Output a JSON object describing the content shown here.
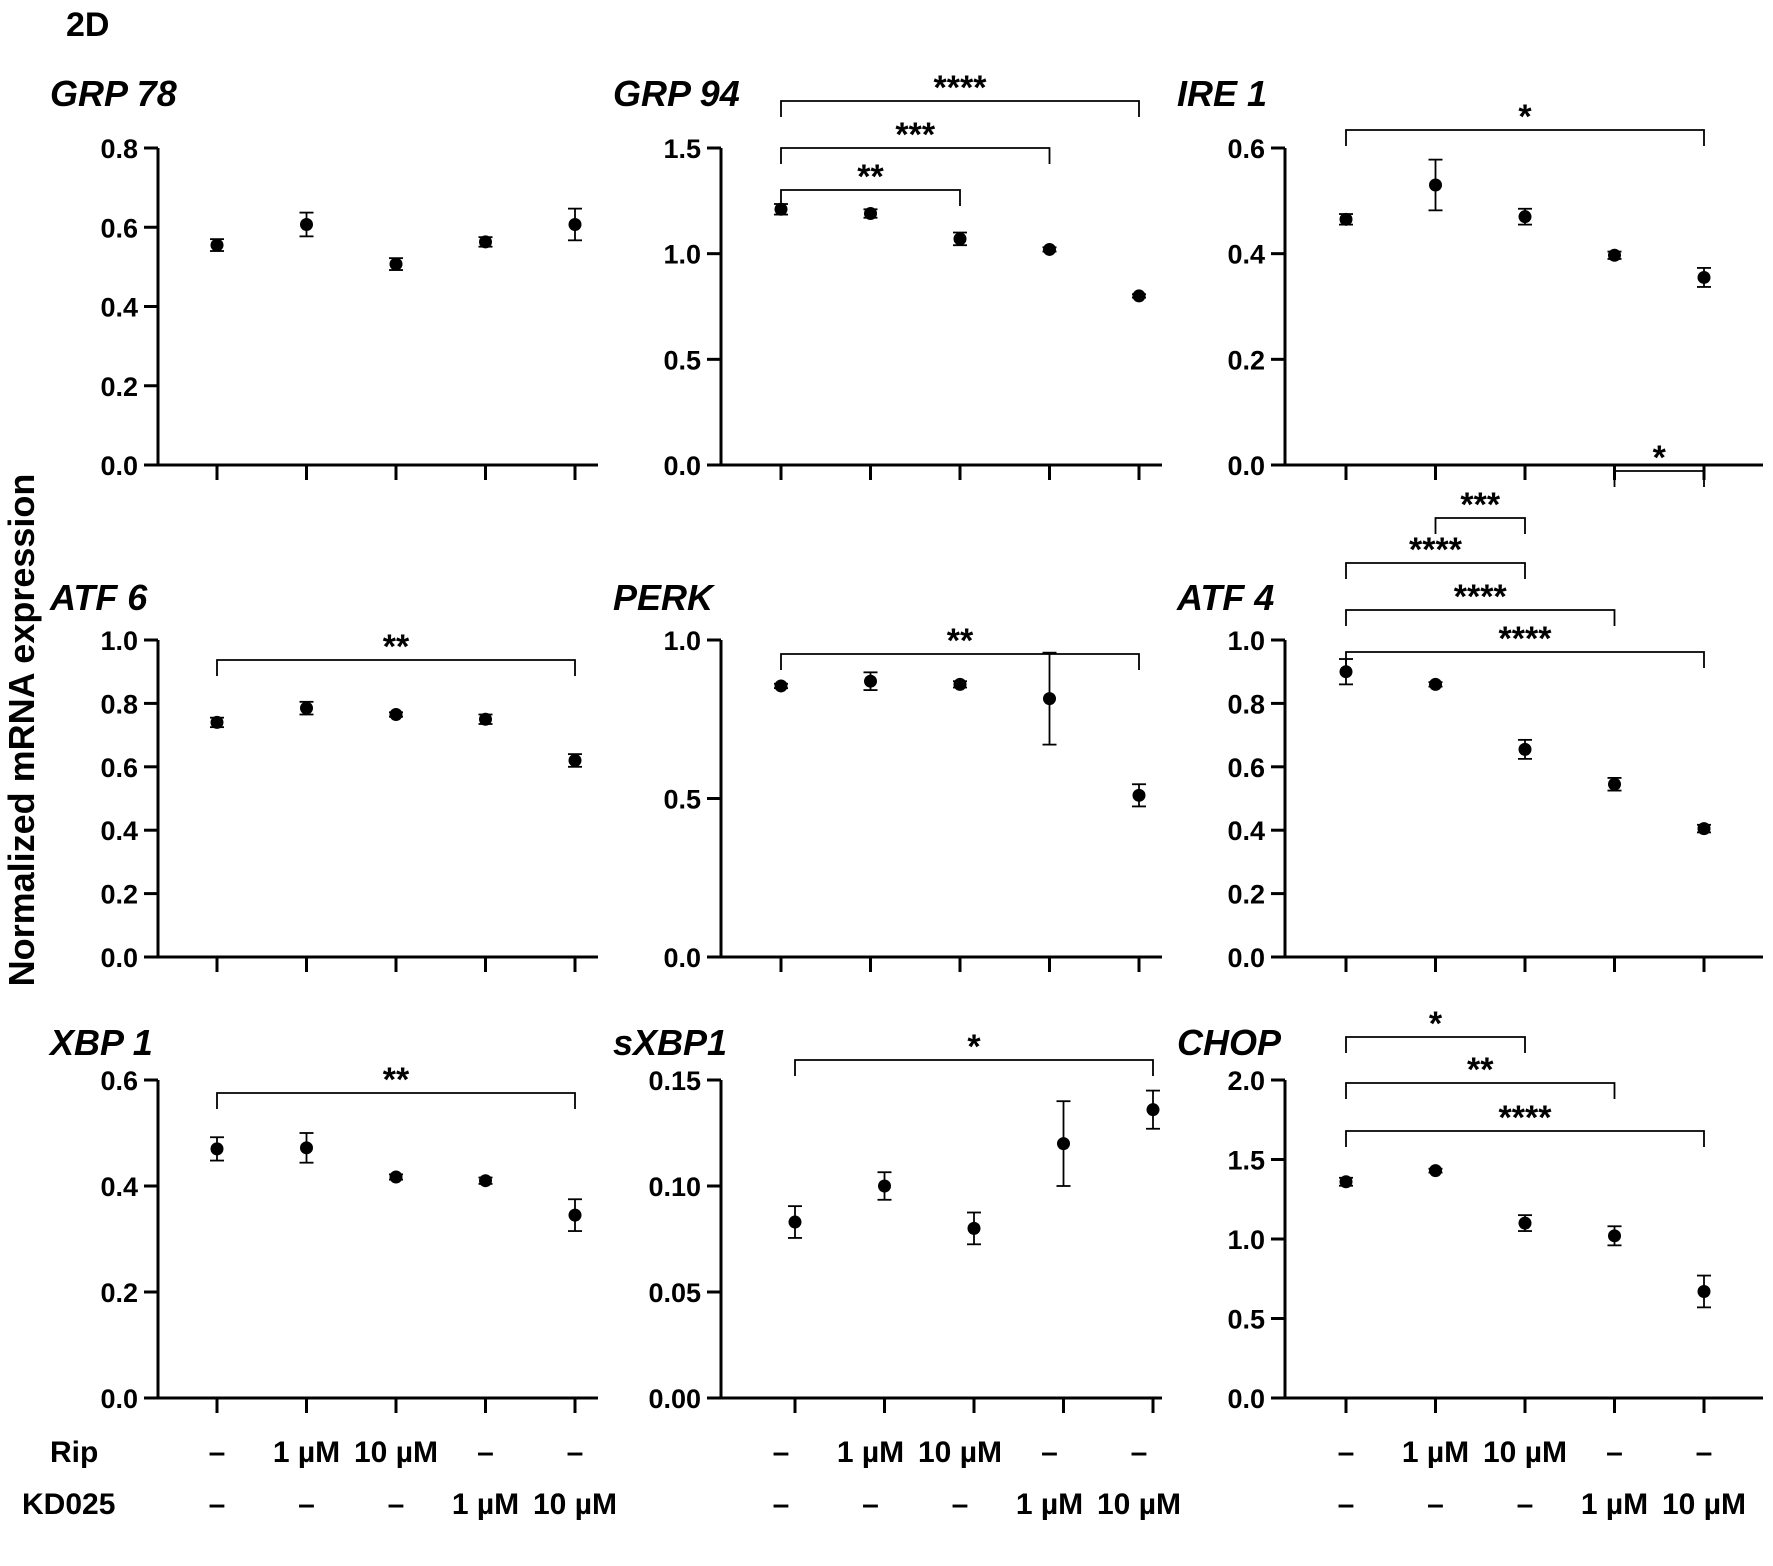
{
  "figure": {
    "panel_label": "2D",
    "ylabel": "Normalized mRNA expression",
    "row_labels": [
      "Rip",
      "KD025"
    ],
    "conditions": [
      {
        "rip": "–",
        "kd025": "–"
      },
      {
        "rip": "1 µM",
        "kd025": "–"
      },
      {
        "rip": "10 µM",
        "kd025": "–"
      },
      {
        "rip": "–",
        "kd025": "1 µM"
      },
      {
        "rip": "–",
        "kd025": "10 µM"
      }
    ]
  },
  "chart_data": [
    {
      "type": "scatter",
      "title": "GRP 78",
      "ylim": [
        0,
        0.8
      ],
      "yticks": [
        "0.0",
        "0.2",
        "0.4",
        "0.6",
        "0.8"
      ],
      "values": [
        0.555,
        0.607,
        0.507,
        0.563,
        0.607
      ],
      "errors": [
        0.015,
        0.03,
        0.015,
        0.012,
        0.04
      ],
      "brackets": []
    },
    {
      "type": "scatter",
      "title": "GRP 94",
      "ylim": [
        0,
        1.5
      ],
      "yticks": [
        "0.0",
        "0.5",
        "1.0",
        "1.5"
      ],
      "values": [
        1.21,
        1.19,
        1.07,
        1.02,
        0.8
      ],
      "errors": [
        0.025,
        0.02,
        0.03,
        0.01,
        0.008
      ],
      "brackets": [
        {
          "from": 0,
          "to": 2,
          "label": "**"
        },
        {
          "from": 0,
          "to": 3,
          "label": "***"
        },
        {
          "from": 0,
          "to": 4,
          "label": "****"
        }
      ]
    },
    {
      "type": "scatter",
      "title": "IRE 1",
      "ylim": [
        0,
        0.6
      ],
      "yticks": [
        "0.0",
        "0.2",
        "0.4",
        "0.6"
      ],
      "values": [
        0.465,
        0.53,
        0.47,
        0.397,
        0.355
      ],
      "errors": [
        0.01,
        0.048,
        0.015,
        0.007,
        0.018
      ],
      "brackets": [
        {
          "from": 0,
          "to": 4,
          "label": "*"
        }
      ]
    },
    {
      "type": "scatter",
      "title": "ATF 6",
      "ylim": [
        0,
        1.0
      ],
      "yticks": [
        "0.0",
        "0.2",
        "0.4",
        "0.6",
        "0.8",
        "1.0"
      ],
      "values": [
        0.74,
        0.785,
        0.765,
        0.75,
        0.62
      ],
      "errors": [
        0.015,
        0.02,
        0.007,
        0.015,
        0.02
      ],
      "brackets": [
        {
          "from": 0,
          "to": 4,
          "label": "**"
        }
      ]
    },
    {
      "type": "scatter",
      "title": "PERK",
      "ylim": [
        0,
        1.0
      ],
      "yticks": [
        "0.0",
        "0.5",
        "1.0"
      ],
      "values": [
        0.855,
        0.87,
        0.86,
        0.815,
        0.51
      ],
      "errors": [
        0.007,
        0.028,
        0.01,
        0.145,
        0.035
      ],
      "brackets": [
        {
          "from": 0,
          "to": 4,
          "label": "**"
        }
      ]
    },
    {
      "type": "scatter",
      "title": "ATF 4",
      "ylim": [
        0,
        1.0
      ],
      "yticks": [
        "0.0",
        "0.2",
        "0.4",
        "0.6",
        "0.8",
        "1.0"
      ],
      "values": [
        0.9,
        0.86,
        0.655,
        0.545,
        0.405
      ],
      "errors": [
        0.04,
        0.007,
        0.03,
        0.02,
        0.012
      ],
      "brackets": [
        {
          "from": 0,
          "to": 4,
          "label": "****"
        },
        {
          "from": 0,
          "to": 3,
          "label": "****"
        },
        {
          "from": 0,
          "to": 2,
          "label": "****"
        },
        {
          "from": 1,
          "to": 2,
          "label": "***"
        },
        {
          "from": 3,
          "to": 4,
          "label": "*"
        }
      ]
    },
    {
      "type": "scatter",
      "title": "XBP 1",
      "ylim": [
        0,
        0.6
      ],
      "yticks": [
        "0.0",
        "0.2",
        "0.4",
        "0.6"
      ],
      "values": [
        0.47,
        0.472,
        0.417,
        0.41,
        0.345
      ],
      "errors": [
        0.022,
        0.028,
        0.005,
        0.006,
        0.03
      ],
      "brackets": [
        {
          "from": 0,
          "to": 4,
          "label": "**"
        }
      ]
    },
    {
      "type": "scatter",
      "title": "sXBP1",
      "ylim": [
        0,
        0.15
      ],
      "yticks": [
        "0.00",
        "0.05",
        "0.10",
        "0.15"
      ],
      "values": [
        0.083,
        0.1,
        0.08,
        0.12,
        0.136
      ],
      "errors": [
        0.0075,
        0.0065,
        0.0075,
        0.02,
        0.009
      ],
      "brackets": [
        {
          "from": 0,
          "to": 4,
          "label": "*"
        }
      ]
    },
    {
      "type": "scatter",
      "title": "CHOP",
      "ylim": [
        0,
        2.0
      ],
      "yticks": [
        "0.0",
        "0.5",
        "1.0",
        "1.5",
        "2.0"
      ],
      "values": [
        1.36,
        1.43,
        1.1,
        1.02,
        0.67
      ],
      "errors": [
        0.025,
        0.012,
        0.05,
        0.06,
        0.1
      ],
      "brackets": [
        {
          "from": 0,
          "to": 4,
          "label": "****"
        },
        {
          "from": 0,
          "to": 3,
          "label": "**"
        },
        {
          "from": 0,
          "to": 2,
          "label": "*"
        }
      ]
    }
  ]
}
